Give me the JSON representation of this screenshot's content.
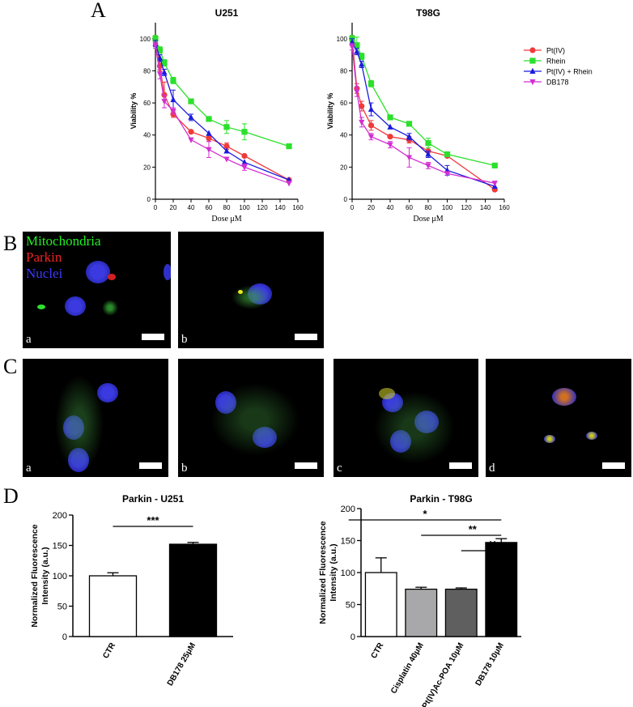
{
  "panel_labels": {
    "a": "A",
    "b": "B",
    "c": "C",
    "d": "D"
  },
  "micro_labels": {
    "mitochondria": "Mitochondria",
    "parkin": "Parkin",
    "nuclei": "Nuclei",
    "sub_a": "a",
    "sub_b": "b",
    "sub_c": "c",
    "sub_d": "d"
  },
  "colors": {
    "pt": "#f03a3a",
    "rhein": "#2be02b",
    "combo": "#1a1adf",
    "db": "#d22fd2",
    "mito_text": "#22ee22",
    "parkin_text": "#ee2222",
    "nuclei_text": "#3a3aff"
  },
  "chart_data": [
    {
      "type": "line",
      "title": "U251",
      "xlabel": "Dose μM",
      "ylabel": "Viability %",
      "xlim": [
        0,
        160
      ],
      "ylim": [
        0,
        110
      ],
      "xticks": [
        0,
        20,
        40,
        60,
        80,
        100,
        120,
        140,
        160
      ],
      "yticks": [
        0,
        20,
        40,
        60,
        80,
        100
      ],
      "legend": "none",
      "series": [
        {
          "name": "Pt(IV)",
          "marker": "circle",
          "color": "#f03a3a",
          "x": [
            0,
            5,
            10,
            20,
            40,
            60,
            80,
            100,
            150
          ],
          "y": [
            100,
            83,
            65,
            53,
            42,
            38,
            33,
            27,
            12
          ],
          "err": [
            2,
            3,
            8,
            2,
            1,
            2,
            2,
            1,
            1
          ]
        },
        {
          "name": "Rhein",
          "marker": "square",
          "color": "#2be02b",
          "x": [
            0,
            5,
            10,
            20,
            40,
            60,
            80,
            100,
            150
          ],
          "y": [
            100,
            93,
            85,
            74,
            61,
            50,
            45,
            42,
            33
          ],
          "err": [
            2,
            2,
            2,
            2,
            1,
            1,
            4,
            5,
            1
          ]
        },
        {
          "name": "Pt(IV) + Rhein",
          "marker": "triangle",
          "color": "#1a1adf",
          "x": [
            0,
            5,
            10,
            20,
            40,
            60,
            80,
            100,
            150
          ],
          "y": [
            97,
            88,
            79,
            62,
            51,
            41,
            30,
            23,
            12
          ],
          "err": [
            2,
            2,
            2,
            6,
            2,
            1,
            1,
            1,
            1
          ]
        },
        {
          "name": "DB178",
          "marker": "triangle-down",
          "color": "#d22fd2",
          "x": [
            0,
            5,
            10,
            20,
            40,
            60,
            80,
            100,
            150
          ],
          "y": [
            96,
            78,
            61,
            55,
            37,
            31,
            25,
            20,
            10
          ],
          "err": [
            2,
            3,
            4,
            2,
            1,
            5,
            1,
            2,
            1
          ]
        }
      ]
    },
    {
      "type": "line",
      "title": "T98G",
      "xlabel": "Dose μM",
      "ylabel": "Viability %",
      "xlim": [
        0,
        160
      ],
      "ylim": [
        0,
        110
      ],
      "xticks": [
        0,
        20,
        40,
        60,
        80,
        100,
        120,
        140,
        160
      ],
      "yticks": [
        0,
        20,
        40,
        60,
        80,
        100
      ],
      "legend": "right",
      "series": [
        {
          "name": "Pt(IV)",
          "marker": "circle",
          "color": "#f03a3a",
          "x": [
            0,
            5,
            10,
            20,
            40,
            60,
            80,
            100,
            150
          ],
          "y": [
            100,
            69,
            58,
            46,
            39,
            37,
            30,
            27,
            6
          ],
          "err": [
            2,
            3,
            3,
            3,
            1,
            2,
            1,
            1,
            1
          ]
        },
        {
          "name": "Rhein",
          "marker": "square",
          "color": "#2be02b",
          "x": [
            0,
            5,
            10,
            20,
            40,
            60,
            80,
            100,
            150
          ],
          "y": [
            100,
            96,
            89,
            72,
            51,
            47,
            35,
            28,
            21
          ],
          "err": [
            2,
            5,
            2,
            2,
            1,
            1,
            3,
            1,
            1
          ]
        },
        {
          "name": "Pt(IV) + Rhein",
          "marker": "triangle",
          "color": "#1a1adf",
          "x": [
            0,
            5,
            10,
            20,
            40,
            60,
            80,
            100,
            150
          ],
          "y": [
            98,
            92,
            84,
            56,
            45,
            39,
            28,
            18,
            8
          ],
          "err": [
            2,
            2,
            2,
            4,
            1,
            2,
            2,
            3,
            1
          ]
        },
        {
          "name": "DB178",
          "marker": "triangle-down",
          "color": "#d22fd2",
          "x": [
            0,
            5,
            10,
            20,
            40,
            60,
            80,
            100,
            150
          ],
          "y": [
            95,
            67,
            48,
            39,
            34,
            26,
            21,
            16,
            10
          ],
          "err": [
            2,
            3,
            3,
            2,
            2,
            6,
            2,
            1,
            1
          ]
        }
      ]
    },
    {
      "type": "bar",
      "title": "Parkin - U251",
      "ylabel": "Normalized Fluorescence Intensity (a.u.)",
      "ylim": [
        0,
        200
      ],
      "yticks": [
        0,
        50,
        100,
        150,
        200
      ],
      "categories": [
        "CTR",
        "DB178 25μM"
      ],
      "values": [
        100,
        152
      ],
      "errors": [
        5,
        3
      ],
      "fills": [
        "#ffffff",
        "#000000"
      ],
      "significance": [
        {
          "from": 0,
          "to": 1,
          "label": "***"
        }
      ]
    },
    {
      "type": "bar",
      "title": "Parkin - T98G",
      "ylabel": "Normalized Fluorescence Intensity (a.u.)",
      "ylim": [
        0,
        200
      ],
      "yticks": [
        0,
        50,
        100,
        150,
        200
      ],
      "categories": [
        "CTR",
        "Cisplatin 40μM",
        "Pt(IV)Ac-POA 10μM",
        "DB178 10μM"
      ],
      "values": [
        100,
        74,
        74,
        147
      ],
      "errors": [
        23,
        3,
        2,
        6
      ],
      "fills": [
        "#ffffff",
        "#a8a8ab",
        "#5f5f5f",
        "#000000"
      ],
      "significance": [
        {
          "from": 0,
          "to": 3,
          "label": "*"
        },
        {
          "from": 1,
          "to": 3,
          "label": "**"
        },
        {
          "from": 2,
          "to": 3,
          "label": "**"
        }
      ]
    }
  ]
}
